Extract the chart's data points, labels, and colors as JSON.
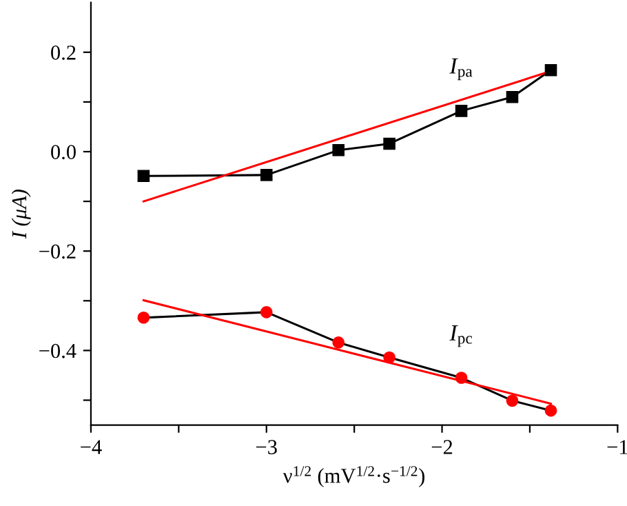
{
  "chart_data": {
    "type": "line",
    "xlabel": "ν$^{1/2}$ (mV$^{1/2}$·s$^{−1/2}$)",
    "ylabel": "I (μA)",
    "xlim": [
      -4,
      -1
    ],
    "ylim": [
      -0.55,
      0.3
    ],
    "xticks": [
      {
        "value": -4,
        "label": "−4"
      },
      {
        "value": -3.5,
        "label": null
      },
      {
        "value": -3,
        "label": "−3"
      },
      {
        "value": -2.5,
        "label": null
      },
      {
        "value": -2,
        "label": "−2"
      },
      {
        "value": -1.5,
        "label": null
      },
      {
        "value": -1,
        "label": "−1"
      }
    ],
    "yticks": [
      {
        "value": -0.5,
        "label": null
      },
      {
        "value": -0.4,
        "label": "−0.4"
      },
      {
        "value": -0.3,
        "label": null
      },
      {
        "value": -0.2,
        "label": "−0.2"
      },
      {
        "value": -0.1,
        "label": null
      },
      {
        "value": 0.0,
        "label": "0.0"
      },
      {
        "value": 0.1,
        "label": null
      },
      {
        "value": 0.2,
        "label": "0.2"
      }
    ],
    "grid": false,
    "legend": false,
    "series": [
      {
        "name": "I$_{pa}$",
        "color": "#000000",
        "marker": "square",
        "x": [
          -3.7,
          -3.0,
          -2.59,
          -2.3,
          -1.89,
          -1.6,
          -1.38
        ],
        "values": [
          -0.049,
          -0.047,
          0.003,
          0.016,
          0.082,
          0.11,
          0.164
        ]
      },
      {
        "color": "#ff0000",
        "marker": "none",
        "x": [
          -3.7,
          -1.38
        ],
        "values": [
          -0.1,
          0.162
        ]
      },
      {
        "name": "I$_{pc}$",
        "color": "#000000",
        "colors": [
          "#ff0000",
          "#ff0000",
          "#ff0000",
          "#ff0000",
          "#ff0000",
          "#ff0000",
          "#ff0000"
        ],
        "marker": "circle",
        "x": [
          -3.7,
          -3.0,
          -2.59,
          -2.3,
          -1.89,
          -1.6,
          -1.38
        ],
        "values": [
          -0.334,
          -0.323,
          -0.384,
          -0.414,
          -0.455,
          -0.501,
          -0.521
        ]
      },
      {
        "color": "#ff0000",
        "marker": "none",
        "x": [
          -3.7,
          -1.38
        ],
        "values": [
          -0.299,
          -0.507
        ]
      }
    ]
  }
}
